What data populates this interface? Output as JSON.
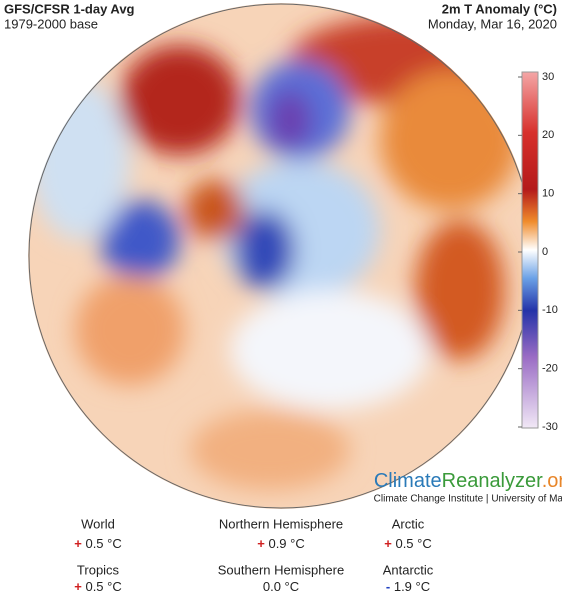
{
  "header": {
    "title": "GFS/CFSR 1-day Avg",
    "subtitle": "1979-2000 base",
    "variable": "2m T Anomaly (°C)",
    "date": "Monday, Mar 16, 2020"
  },
  "colorbar": {
    "lim": [
      -30,
      30
    ],
    "ticks": [
      30,
      20,
      10,
      0,
      -10,
      -20,
      -30
    ]
  },
  "brand": {
    "parts": [
      "Climate",
      "Reanalyzer",
      ".org"
    ],
    "credit": "Climate Change Institute | University of Maine"
  },
  "stats": [
    {
      "label": "World",
      "sign": "+",
      "value": "0.5 °C"
    },
    {
      "label": "Northern Hemisphere",
      "sign": "+",
      "value": "0.9 °C"
    },
    {
      "label": "Arctic",
      "sign": "+",
      "value": "0.5 °C"
    },
    {
      "label": "Tropics",
      "sign": "+",
      "value": "0.5 °C"
    },
    {
      "label": "Southern Hemisphere",
      "value": "0.0 °C"
    },
    {
      "label": "Antarctic",
      "sign": "-",
      "value": "1.9 °C"
    }
  ]
}
